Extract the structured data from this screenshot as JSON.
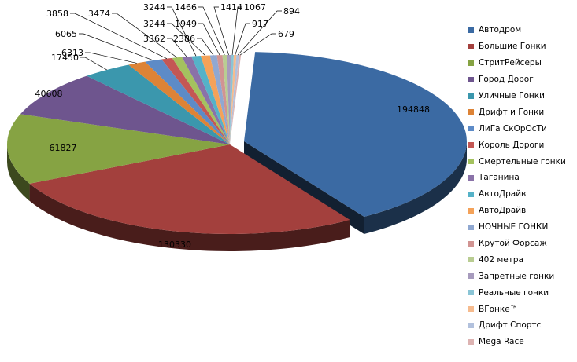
{
  "chart_data": {
    "type": "pie",
    "labels": [
      "Автодром",
      "Большие Гонки",
      "СтритРейсеры",
      "Город Дорог",
      "Уличные Гонки",
      "Дрифт и Гонки",
      "ЛиГа СкОрОсТи",
      "Король Дороги",
      "Смертельные гонки",
      "Таганина",
      "АвтоДрайв",
      "АвтоДрайв",
      "НОЧНЫЕ ГОНКИ",
      "Крутой Форсаж",
      "402 метра",
      "Запретные гонки",
      "Реальные гонки",
      "ВГонке™",
      "Дрифт Спортс",
      "Mega Race"
    ],
    "values": [
      194848,
      130330,
      61827,
      40608,
      17450,
      6313,
      6065,
      3858,
      3474,
      3362,
      3244,
      3244,
      2386,
      1949,
      1466,
      1414,
      1067,
      917,
      894,
      679
    ],
    "colors": [
      "#3b6aa3",
      "#a3403d",
      "#86a343",
      "#6e558e",
      "#3b97ad",
      "#dd8336",
      "#5d8bc7",
      "#c45754",
      "#a4c25f",
      "#8a72a8",
      "#55b2c8",
      "#f4a259",
      "#90a8d1",
      "#d19492",
      "#b9cd92",
      "#a79bbd",
      "#8ac5d6",
      "#f6bb8e",
      "#b2c1dd",
      "#ddb3b2"
    ],
    "legend_position": "right"
  }
}
